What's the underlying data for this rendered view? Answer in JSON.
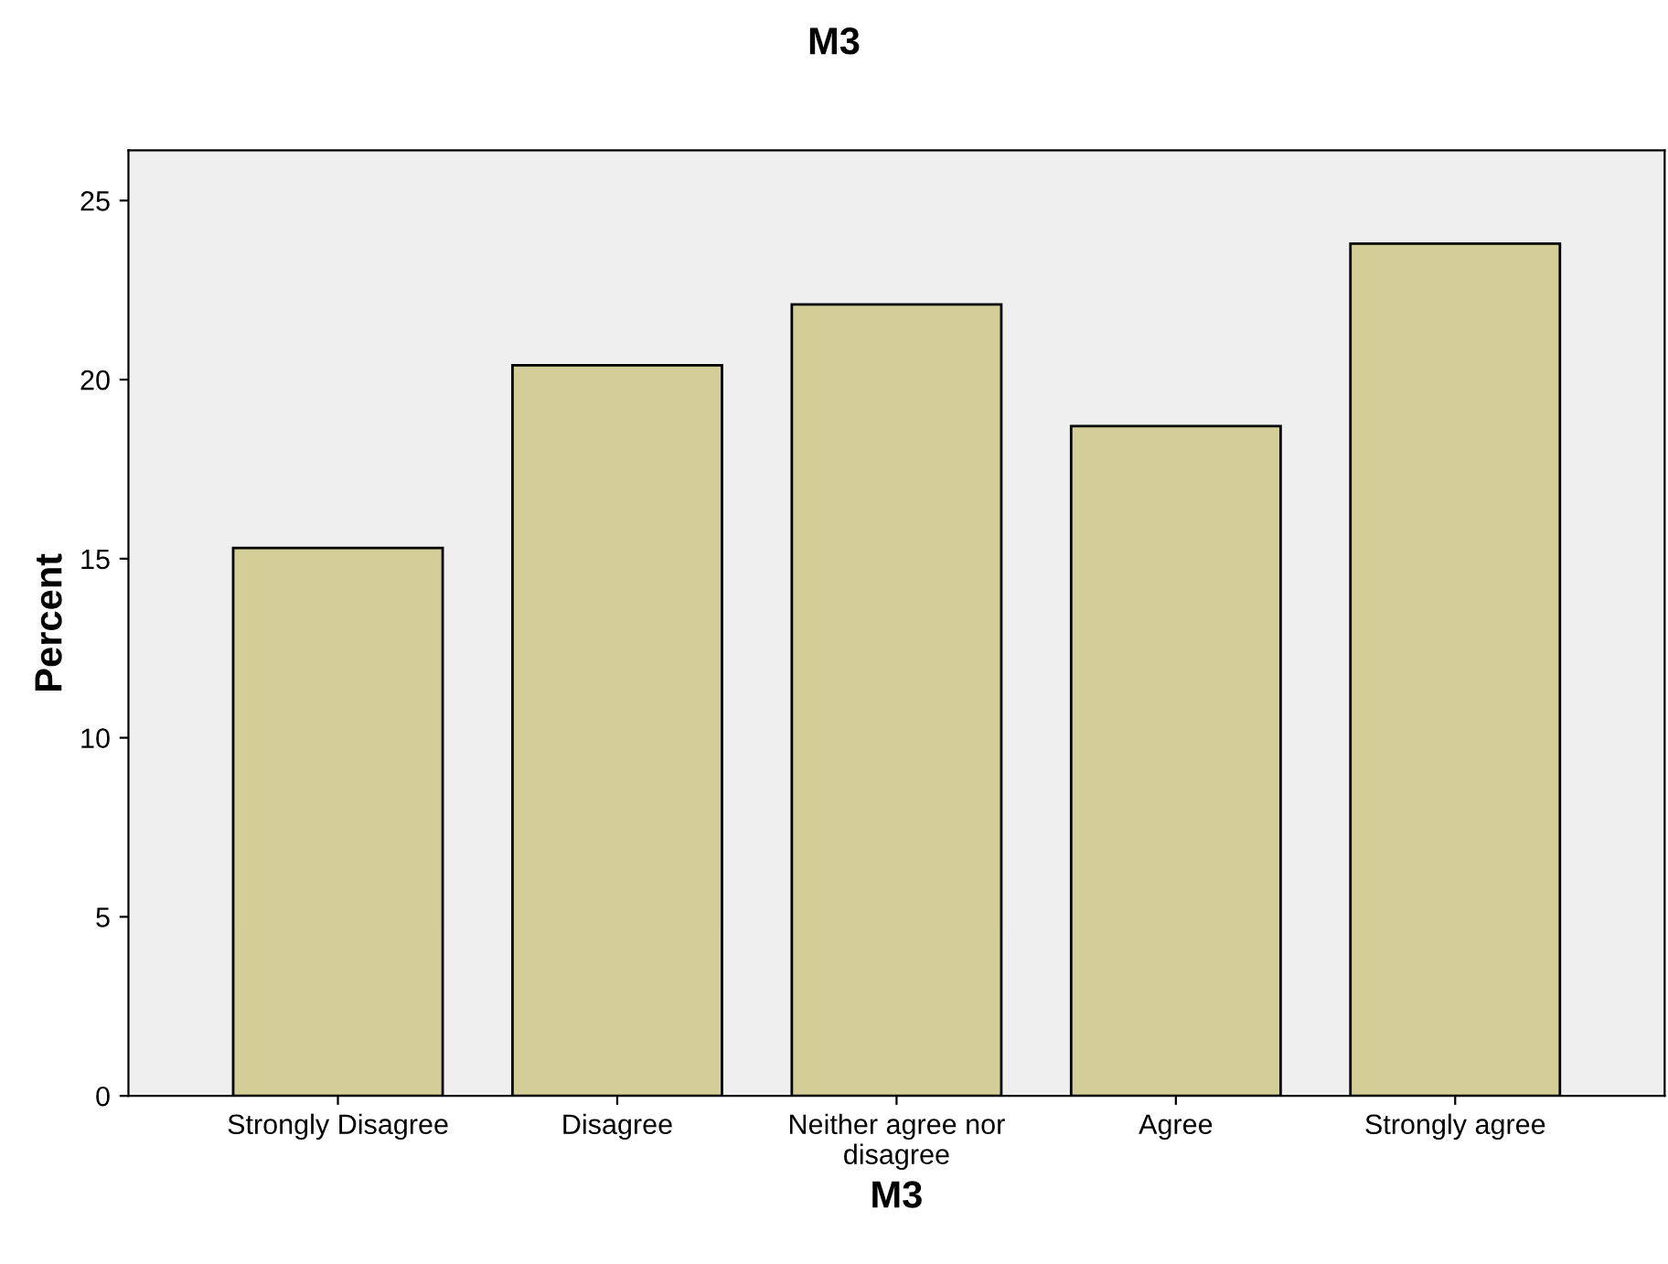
{
  "chart_data": {
    "type": "bar",
    "title": "M3",
    "xlabel": "M3",
    "ylabel": "Percent",
    "categories": [
      "Strongly Disagree",
      "Disagree",
      "Neither agree nor\ndisagree",
      "Agree",
      "Strongly agree"
    ],
    "values": [
      15.3,
      20.4,
      22.1,
      18.7,
      23.8
    ],
    "color": "#d3ce97",
    "ylim": [
      0,
      26.4
    ],
    "yticks": [
      0,
      5,
      10,
      15,
      20,
      25
    ],
    "grid": false
  }
}
